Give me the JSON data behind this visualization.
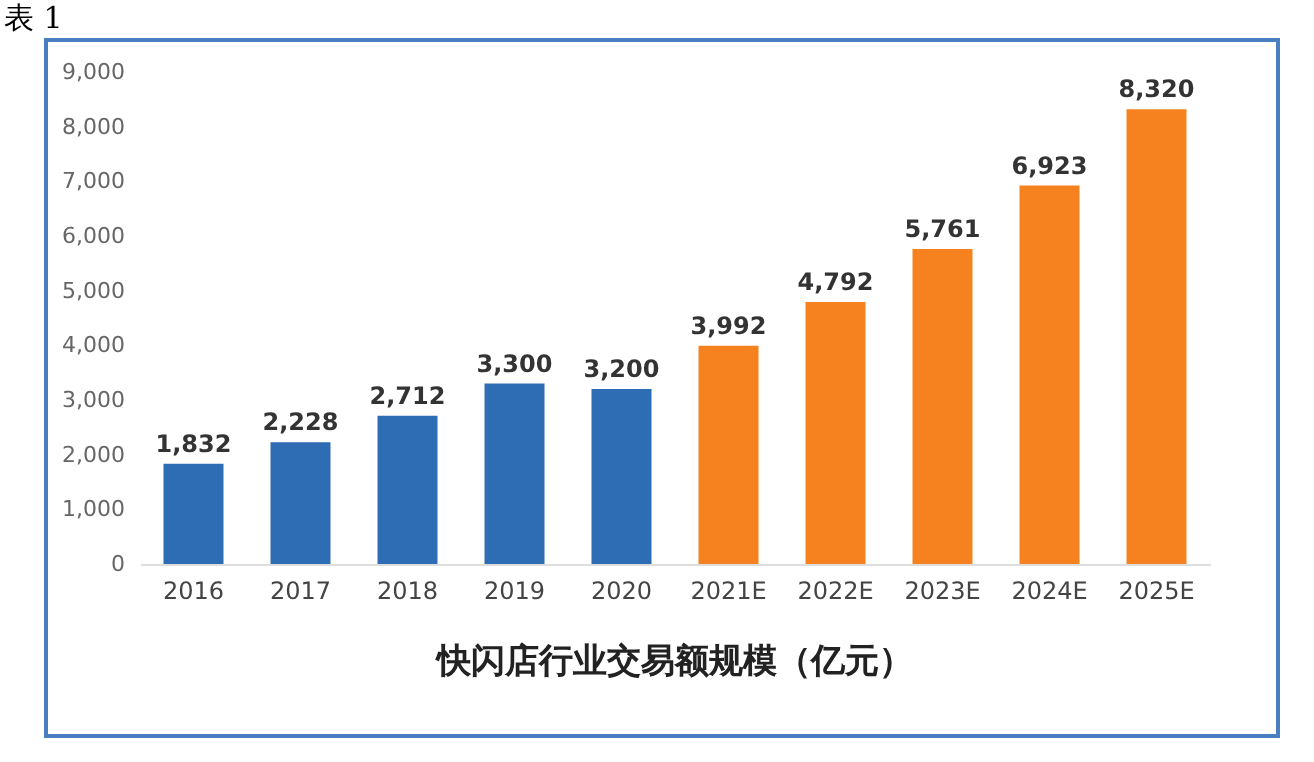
{
  "chart_data": {
    "type": "bar",
    "title": "快闪店行业交易额规模（亿元）",
    "annotations": [
      "表 1"
    ],
    "categories": [
      "2016",
      "2017",
      "2018",
      "2019",
      "2020",
      "2021E",
      "2022E",
      "2023E",
      "2024E",
      "2025E"
    ],
    "values": [
      1832,
      2228,
      2712,
      3300,
      3200,
      3992,
      4792,
      5761,
      6923,
      8320
    ],
    "value_labels": [
      "1,832",
      "2,228",
      "2,712",
      "3,300",
      "3,200",
      "3,992",
      "4,792",
      "5,761",
      "6,923",
      "8,320"
    ],
    "colors": [
      "#2e6db4",
      "#2e6db4",
      "#2e6db4",
      "#2e6db4",
      "#2e6db4",
      "#f5821f",
      "#f5821f",
      "#f5821f",
      "#f5821f",
      "#f5821f"
    ],
    "ylim": [
      0,
      9000
    ],
    "yticks": [
      0,
      {
        "value": 1000,
        "label": "1,000"
      },
      {
        "value": 2000,
        "label": "2,000"
      },
      {
        "value": 3000,
        "label": "3,000"
      },
      {
        "value": 4000,
        "label": "4,000"
      },
      {
        "value": 5000,
        "label": "5,000"
      },
      {
        "value": 6000,
        "label": "6,000"
      },
      {
        "value": 7000,
        "label": "7,000"
      },
      {
        "value": 8000,
        "label": "8,000"
      },
      {
        "value": 9000,
        "label": "9,000"
      }
    ],
    "grid": false
  }
}
